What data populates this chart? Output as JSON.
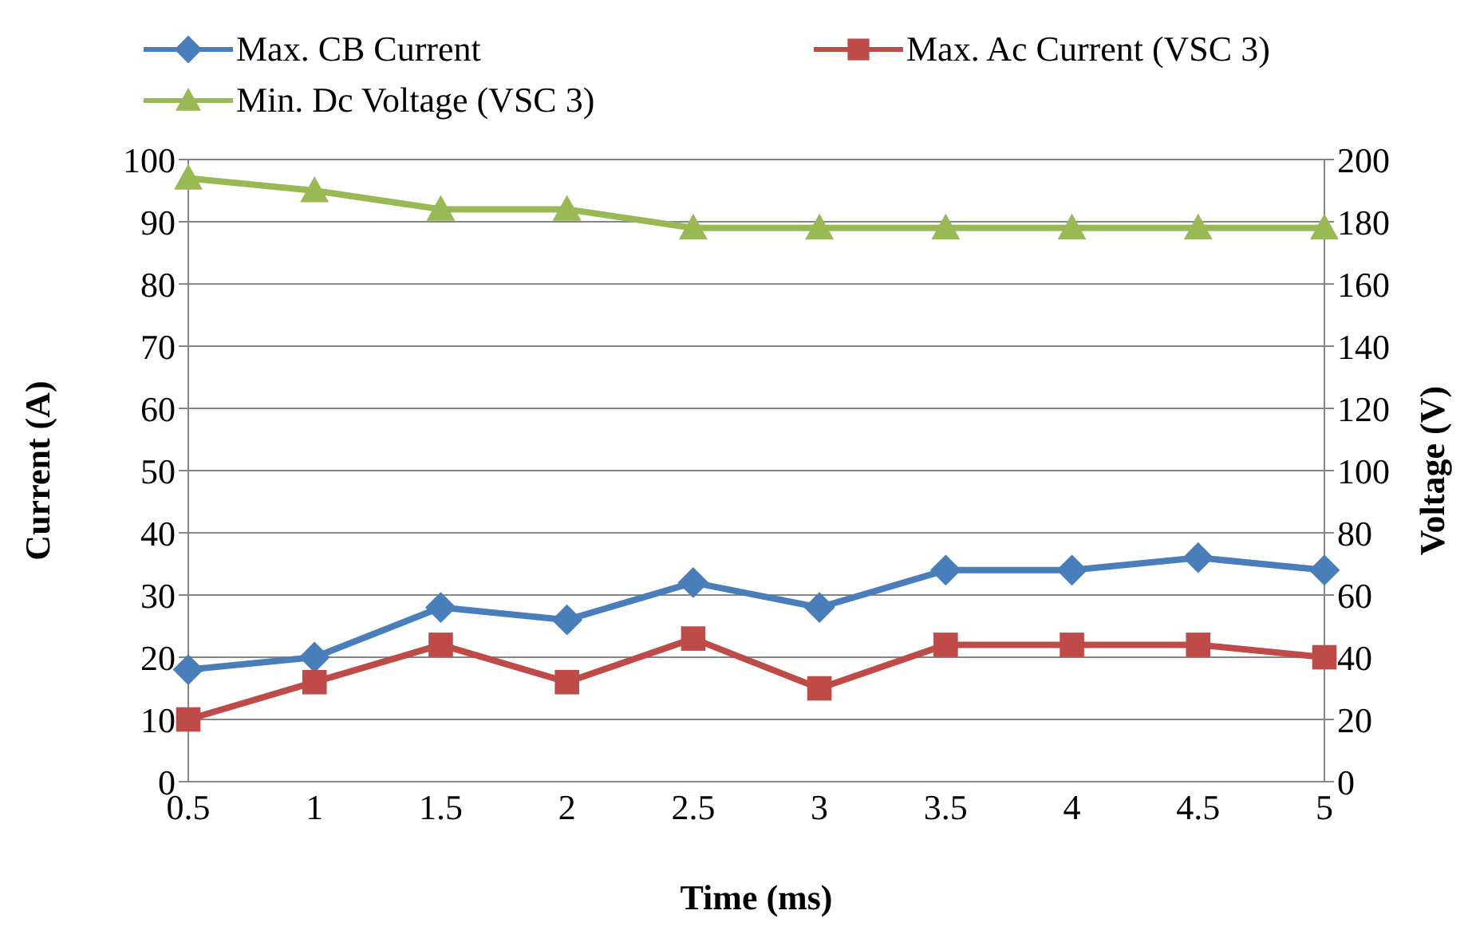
{
  "chart_data": {
    "type": "line",
    "xlabel": "Time (ms)",
    "ylabel": "Current (A)",
    "y2label": "Voltage (V)",
    "categories": [
      "0.5",
      "1",
      "1.5",
      "2",
      "2.5",
      "3",
      "3.5",
      "4",
      "4.5",
      "5"
    ],
    "series": [
      {
        "name": "Max. CB Current",
        "color": "#4a7ebb",
        "marker": "diamond",
        "values": [
          18,
          20,
          28,
          26,
          32,
          28,
          34,
          34,
          36,
          34
        ]
      },
      {
        "name": "Max. Ac Current (VSC 3)",
        "color": "#be4b48",
        "marker": "square",
        "values": [
          10,
          16,
          22,
          16,
          23,
          15,
          22,
          22,
          22,
          20
        ]
      },
      {
        "name": "Min. Dc Voltage (VSC 3)",
        "color": "#98b954",
        "marker": "triangle",
        "axis": "y2",
        "values": [
          194,
          190,
          184,
          184,
          178,
          178,
          178,
          178,
          178,
          178
        ]
      }
    ],
    "ylim": [
      0,
      100
    ],
    "yticks": [
      0,
      10,
      20,
      30,
      40,
      50,
      60,
      70,
      80,
      90,
      100
    ],
    "y2lim": [
      0,
      200
    ],
    "y2ticks": [
      0,
      20,
      40,
      60,
      80,
      100,
      120,
      140,
      160,
      180,
      200
    ],
    "grid": "y",
    "legend": "top left",
    "line_style": "solid"
  }
}
